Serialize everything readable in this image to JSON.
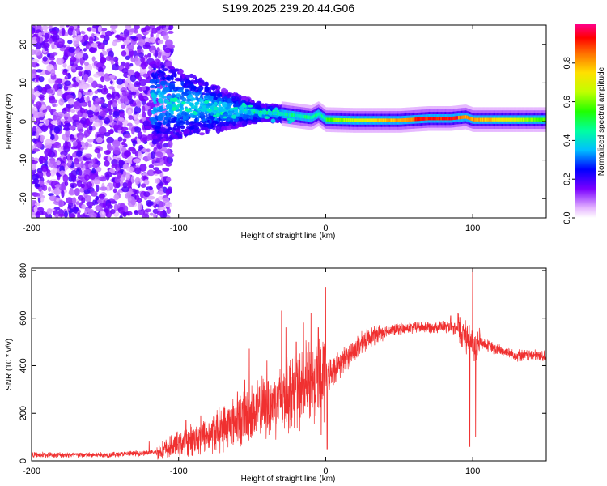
{
  "title": "S199.2025.239.20.44.G06",
  "colors": {
    "snr_line": "#f03030",
    "axes": "#000000",
    "background": "#ffffff"
  },
  "chart_data": [
    {
      "type": "heatmap",
      "name": "spectrogram",
      "xlabel": "Height of straight line (km)",
      "ylabel": "Frequency (Hz)",
      "xlim": [
        -200,
        150
      ],
      "ylim": [
        -25,
        25
      ],
      "xticks": [
        {
          "v": -200,
          "label": "-200"
        },
        {
          "v": -100,
          "label": "-100"
        },
        {
          "v": 0,
          "label": "0"
        },
        {
          "v": 100,
          "label": "100"
        }
      ],
      "yticks": [
        {
          "v": 20,
          "label": "20"
        },
        {
          "v": 10,
          "label": "10"
        },
        {
          "v": 0,
          "label": "0"
        },
        {
          "v": -10,
          "label": "-10"
        },
        {
          "v": -20,
          "label": "-20"
        }
      ],
      "colorbar": {
        "label": "Normalized spectral amplitude",
        "range": [
          0,
          1
        ],
        "ticks": [
          {
            "v": 0.0,
            "label": "0.0"
          },
          {
            "v": 0.2,
            "label": "0.2"
          },
          {
            "v": 0.4,
            "label": "0.4"
          },
          {
            "v": 0.6,
            "label": "0.6"
          },
          {
            "v": 0.8,
            "label": "0.8"
          }
        ]
      },
      "ridge_track": [
        [
          -110,
          5
        ],
        [
          -90,
          4
        ],
        [
          -70,
          3
        ],
        [
          -50,
          2.5
        ],
        [
          -30,
          2
        ],
        [
          -20,
          1.5
        ],
        [
          -10,
          1
        ],
        [
          -5,
          2
        ],
        [
          0,
          0.5
        ],
        [
          20,
          0.3
        ],
        [
          50,
          0.3
        ],
        [
          70,
          0.8
        ],
        [
          85,
          0.8
        ],
        [
          95,
          1.2
        ],
        [
          100,
          0.5
        ],
        [
          120,
          0.5
        ],
        [
          150,
          0.5
        ]
      ]
    },
    {
      "type": "line",
      "name": "snr",
      "xlabel": "Height of straight line (km)",
      "ylabel": "SNR (10 * v/v)",
      "xlim": [
        -200,
        150
      ],
      "ylim": [
        0,
        810
      ],
      "xticks": [
        {
          "v": -200,
          "label": "-200"
        },
        {
          "v": -100,
          "label": "-100"
        },
        {
          "v": 0,
          "label": "0"
        },
        {
          "v": 100,
          "label": "100"
        }
      ],
      "yticks": [
        {
          "v": 0,
          "label": "0"
        },
        {
          "v": 200,
          "label": "200"
        },
        {
          "v": 400,
          "label": "400"
        },
        {
          "v": 600,
          "label": "600"
        },
        {
          "v": 800,
          "label": "800"
        }
      ],
      "envelope": [
        [
          -200,
          25
        ],
        [
          -150,
          25
        ],
        [
          -115,
          35
        ],
        [
          -100,
          70
        ],
        [
          -80,
          110
        ],
        [
          -60,
          170
        ],
        [
          -40,
          230
        ],
        [
          -25,
          280
        ],
        [
          -10,
          330
        ],
        [
          0,
          350
        ],
        [
          10,
          410
        ],
        [
          20,
          470
        ],
        [
          30,
          520
        ],
        [
          40,
          545
        ],
        [
          60,
          560
        ],
        [
          80,
          565
        ],
        [
          90,
          550
        ],
        [
          97,
          520
        ],
        [
          100,
          480
        ],
        [
          105,
          500
        ],
        [
          115,
          470
        ],
        [
          130,
          445
        ],
        [
          150,
          440
        ]
      ],
      "spikes": [
        [
          -120,
          80
        ],
        [
          -95,
          170
        ],
        [
          -85,
          190
        ],
        [
          -60,
          290
        ],
        [
          -55,
          340
        ],
        [
          -52,
          470
        ],
        [
          -40,
          420
        ],
        [
          -30,
          630
        ],
        [
          -27,
          560
        ],
        [
          -20,
          500
        ],
        [
          -15,
          580
        ],
        [
          -10,
          620
        ],
        [
          -5,
          560
        ],
        [
          0,
          730
        ],
        [
          1,
          50
        ],
        [
          -3,
          110
        ],
        [
          98,
          60
        ],
        [
          100,
          810
        ],
        [
          101,
          420
        ],
        [
          102,
          100
        ],
        [
          95,
          590
        ],
        [
          90,
          620
        ],
        [
          85,
          610
        ]
      ]
    }
  ]
}
